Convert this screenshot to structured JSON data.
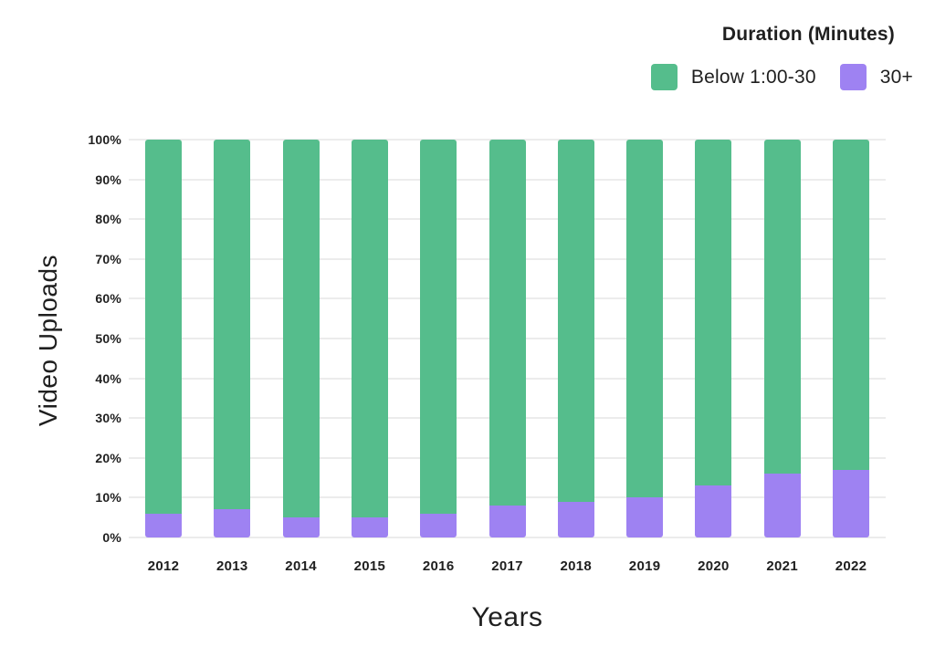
{
  "chart_data": {
    "type": "bar",
    "stacked": true,
    "orientation": "vertical",
    "legend_title": "Duration (Minutes)",
    "legend_position": "top-right",
    "xlabel": "Years",
    "ylabel": "Video Uploads",
    "categories": [
      "2012",
      "2013",
      "2014",
      "2015",
      "2016",
      "2017",
      "2018",
      "2019",
      "2020",
      "2021",
      "2022"
    ],
    "series": [
      {
        "name": "Below 1:00-30",
        "color": "#55BD8C",
        "values": [
          94,
          93,
          95,
          95,
          94,
          92,
          91,
          90,
          87,
          84,
          83
        ]
      },
      {
        "name": "30+",
        "color": "#9E82F2",
        "values": [
          6,
          7,
          5,
          5,
          6,
          8,
          9,
          10,
          13,
          16,
          17
        ]
      }
    ],
    "stack_bottom_series": "30+",
    "units": "%",
    "ylim": [
      0,
      100
    ],
    "yticks": [
      "0%",
      "10%",
      "20%",
      "30%",
      "40%",
      "50%",
      "60%",
      "70%",
      "80%",
      "90%",
      "100%"
    ],
    "grid": true,
    "colors": {
      "grid": "#ECECEC",
      "text": "#1F1F1F",
      "background": "#FFFFFF"
    }
  }
}
